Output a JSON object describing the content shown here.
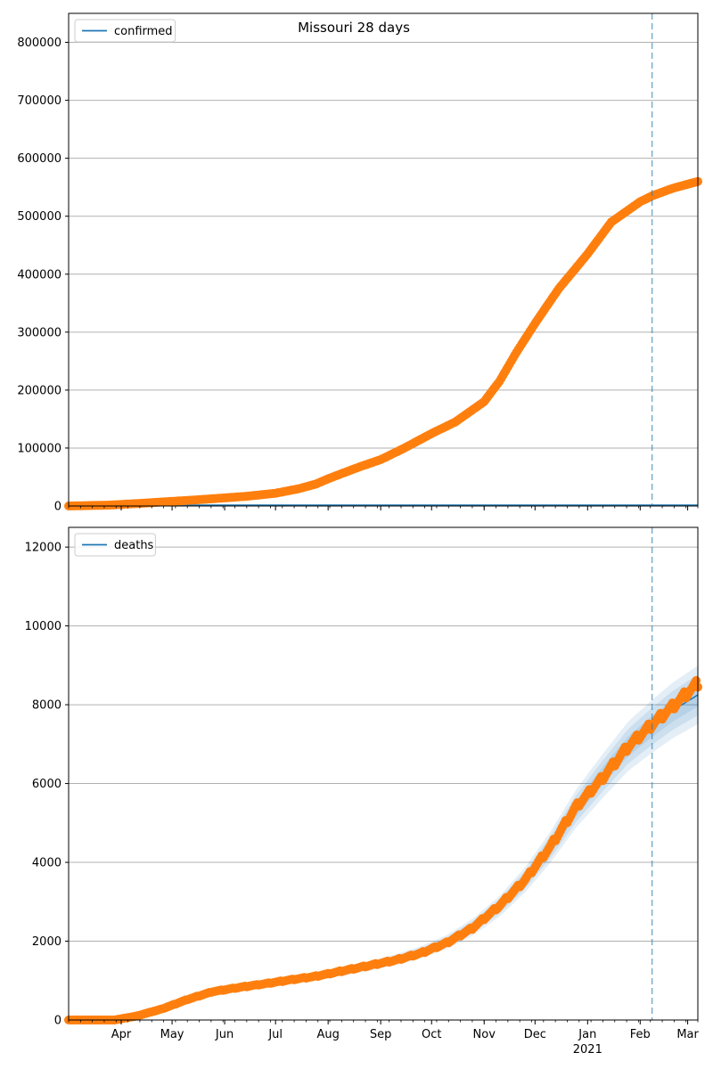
{
  "figure": {
    "title": "Missouri 28 days"
  },
  "chart_data": [
    {
      "type": "line",
      "legend": [
        "confirmed"
      ],
      "legend_position": "top-left",
      "grid": "y",
      "ylim": [
        0,
        850000
      ],
      "yticks": [
        0,
        100000,
        200000,
        300000,
        400000,
        500000,
        600000,
        700000,
        800000
      ],
      "x_range": [
        "2020-03-01",
        "2021-03-07"
      ],
      "forecast_start": "2021-02-08",
      "series": [
        {
          "name": "confirmed",
          "x": [
            "2020-03-01",
            "2020-03-25",
            "2020-04-15",
            "2020-05-01",
            "2020-05-15",
            "2020-06-01",
            "2020-06-15",
            "2020-07-01",
            "2020-07-15",
            "2020-07-25",
            "2020-08-01",
            "2020-08-10",
            "2020-08-20",
            "2020-09-01",
            "2020-09-15",
            "2020-10-01",
            "2020-10-15",
            "2020-11-01",
            "2020-11-10",
            "2020-11-20",
            "2020-12-01",
            "2020-12-15",
            "2021-01-01",
            "2021-01-15",
            "2021-02-01",
            "2021-02-08",
            "2021-02-20",
            "2021-03-07"
          ],
          "values": [
            0,
            1500,
            5000,
            8000,
            10500,
            14000,
            17000,
            22000,
            30000,
            38000,
            47000,
            57000,
            68000,
            80000,
            100000,
            125000,
            145000,
            180000,
            215000,
            265000,
            315000,
            375000,
            435000,
            490000,
            525000,
            535000,
            548000,
            560000
          ]
        }
      ]
    },
    {
      "type": "line",
      "legend": [
        "deaths"
      ],
      "legend_position": "top-left",
      "grid": "y",
      "ylim": [
        0,
        12500
      ],
      "yticks": [
        0,
        2000,
        4000,
        6000,
        8000,
        10000,
        12000
      ],
      "x_range": [
        "2020-03-01",
        "2021-03-07"
      ],
      "forecast_start": "2021-02-08",
      "series": [
        {
          "name": "deaths",
          "x": [
            "2020-03-01",
            "2020-03-28",
            "2020-04-10",
            "2020-04-25",
            "2020-05-10",
            "2020-05-25",
            "2020-06-10",
            "2020-06-25",
            "2020-07-10",
            "2020-07-25",
            "2020-08-10",
            "2020-08-25",
            "2020-09-10",
            "2020-09-25",
            "2020-10-10",
            "2020-10-25",
            "2020-11-10",
            "2020-11-25",
            "2020-12-10",
            "2020-12-25",
            "2021-01-10",
            "2021-01-25",
            "2021-02-08",
            "2021-02-20",
            "2021-03-07"
          ],
          "values": [
            0,
            0,
            100,
            280,
            520,
            720,
            830,
            920,
            1020,
            1110,
            1250,
            1380,
            1520,
            1700,
            1960,
            2330,
            2900,
            3550,
            4400,
            5400,
            6150,
            6950,
            7500,
            7950,
            8550
          ],
          "model": [
            0,
            0,
            110,
            300,
            530,
            720,
            840,
            940,
            1020,
            1120,
            1240,
            1370,
            1530,
            1720,
            1980,
            2350,
            2880,
            3550,
            4380,
            5350,
            6200,
            6950,
            7450,
            7850,
            8250
          ],
          "band_pct": [
            0.12,
            0.12,
            0.12,
            0.11,
            0.11,
            0.11,
            0.1,
            0.1,
            0.1,
            0.09,
            0.09,
            0.09,
            0.09,
            0.09,
            0.09,
            0.09,
            0.09,
            0.09,
            0.09,
            0.09,
            0.09,
            0.09,
            0.09,
            0.09,
            0.09
          ]
        }
      ]
    }
  ],
  "xaxis": {
    "month_labels": [
      {
        "label": "Apr",
        "date": "2020-04-01"
      },
      {
        "label": "May",
        "date": "2020-05-01"
      },
      {
        "label": "Jun",
        "date": "2020-06-01"
      },
      {
        "label": "Jul",
        "date": "2020-07-01"
      },
      {
        "label": "Aug",
        "date": "2020-08-01"
      },
      {
        "label": "Sep",
        "date": "2020-09-01"
      },
      {
        "label": "Oct",
        "date": "2020-10-01"
      },
      {
        "label": "Nov",
        "date": "2020-11-01"
      },
      {
        "label": "Dec",
        "date": "2020-12-01"
      },
      {
        "label": "Jan",
        "date": "2021-01-01"
      },
      {
        "label": "Feb",
        "date": "2021-02-01"
      },
      {
        "label": "Mar",
        "date": "2021-03-01"
      }
    ],
    "year_label": "2021"
  },
  "colors": {
    "observed": "#ff7f0e",
    "model_line": "#1f77b4",
    "forecast_line": "#1f77b4",
    "band": "#1f77b4",
    "grid": "#b0b0b0",
    "axis": "#000000"
  }
}
